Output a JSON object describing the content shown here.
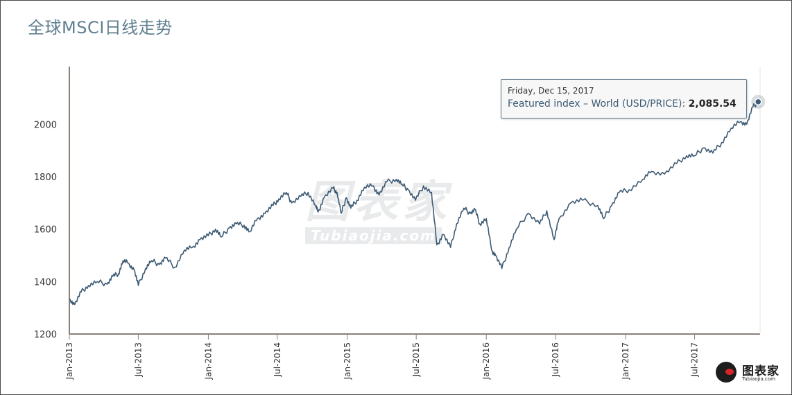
{
  "title": "全球MSCI日线走势",
  "colors": {
    "line": "#3d5a73",
    "axis": "#8a7f77",
    "title": "#5f7f8f",
    "grid_band": "#f5f5f5"
  },
  "chart_data": {
    "type": "line",
    "title": "全球MSCI日线走势",
    "xlabel": "",
    "ylabel": "",
    "ylim": [
      1200,
      2220
    ],
    "xlim": [
      "2013-01-01",
      "2017-12-20"
    ],
    "y_ticks": [
      {
        "value": 1200,
        "label": "1200"
      },
      {
        "value": 1400,
        "label": "1400"
      },
      {
        "value": 1600,
        "label": "1600"
      },
      {
        "value": 1800,
        "label": "1800"
      },
      {
        "value": 2000,
        "label": "2000"
      }
    ],
    "x_ticks": [
      {
        "date": "2013-01-01",
        "label": "Jan-2013"
      },
      {
        "date": "2013-07-01",
        "label": "Jul-2013"
      },
      {
        "date": "2014-01-01",
        "label": "Jan-2014"
      },
      {
        "date": "2014-07-01",
        "label": "Jul-2014"
      },
      {
        "date": "2015-01-01",
        "label": "Jan-2015"
      },
      {
        "date": "2015-07-01",
        "label": "Jul-2015"
      },
      {
        "date": "2016-01-01",
        "label": "Jan-2016"
      },
      {
        "date": "2016-07-01",
        "label": "Jul-2016"
      },
      {
        "date": "2017-01-01",
        "label": "Jan-2017"
      },
      {
        "date": "2017-07-01",
        "label": "Jul-2017"
      }
    ],
    "series": [
      {
        "name": "Featured index – World (USD/PRICE)",
        "points": [
          [
            "2013-01-01",
            1335
          ],
          [
            "2013-01-15",
            1312
          ],
          [
            "2013-02-01",
            1360
          ],
          [
            "2013-02-20",
            1385
          ],
          [
            "2013-03-15",
            1400
          ],
          [
            "2013-04-10",
            1390
          ],
          [
            "2013-04-25",
            1420
          ],
          [
            "2013-05-10",
            1430
          ],
          [
            "2013-05-22",
            1480
          ],
          [
            "2013-06-05",
            1470
          ],
          [
            "2013-06-20",
            1445
          ],
          [
            "2013-07-01",
            1385
          ],
          [
            "2013-07-20",
            1450
          ],
          [
            "2013-08-05",
            1480
          ],
          [
            "2013-08-25",
            1465
          ],
          [
            "2013-09-10",
            1490
          ],
          [
            "2013-10-05",
            1455
          ],
          [
            "2013-10-30",
            1520
          ],
          [
            "2013-11-20",
            1530
          ],
          [
            "2013-12-10",
            1560
          ],
          [
            "2014-01-01",
            1575
          ],
          [
            "2014-01-20",
            1600
          ],
          [
            "2014-02-04",
            1570
          ],
          [
            "2014-02-25",
            1605
          ],
          [
            "2014-03-15",
            1620
          ],
          [
            "2014-04-05",
            1615
          ],
          [
            "2014-04-20",
            1590
          ],
          [
            "2014-05-10",
            1640
          ],
          [
            "2014-05-30",
            1660
          ],
          [
            "2014-06-20",
            1690
          ],
          [
            "2014-07-05",
            1715
          ],
          [
            "2014-07-25",
            1740
          ],
          [
            "2014-08-08",
            1700
          ],
          [
            "2014-09-01",
            1725
          ],
          [
            "2014-09-20",
            1740
          ],
          [
            "2014-10-10",
            1690
          ],
          [
            "2014-10-16",
            1665
          ],
          [
            "2014-11-01",
            1720
          ],
          [
            "2014-11-25",
            1755
          ],
          [
            "2014-12-05",
            1740
          ],
          [
            "2014-12-16",
            1660
          ],
          [
            "2014-12-29",
            1720
          ],
          [
            "2015-01-10",
            1680
          ],
          [
            "2015-01-26",
            1710
          ],
          [
            "2015-02-15",
            1760
          ],
          [
            "2015-03-10",
            1765
          ],
          [
            "2015-03-25",
            1730
          ],
          [
            "2015-04-15",
            1780
          ],
          [
            "2015-05-10",
            1790
          ],
          [
            "2015-05-25",
            1770
          ],
          [
            "2015-06-10",
            1750
          ],
          [
            "2015-06-29",
            1710
          ],
          [
            "2015-07-20",
            1765
          ],
          [
            "2015-08-10",
            1740
          ],
          [
            "2015-08-24",
            1540
          ],
          [
            "2015-09-10",
            1580
          ],
          [
            "2015-09-29",
            1530
          ],
          [
            "2015-10-15",
            1620
          ],
          [
            "2015-11-03",
            1680
          ],
          [
            "2015-11-20",
            1660
          ],
          [
            "2015-12-02",
            1675
          ],
          [
            "2015-12-15",
            1620
          ],
          [
            "2016-01-01",
            1640
          ],
          [
            "2016-01-15",
            1520
          ],
          [
            "2016-01-25",
            1500
          ],
          [
            "2016-02-11",
            1450
          ],
          [
            "2016-03-01",
            1530
          ],
          [
            "2016-03-20",
            1600
          ],
          [
            "2016-04-20",
            1660
          ],
          [
            "2016-05-20",
            1620
          ],
          [
            "2016-06-08",
            1670
          ],
          [
            "2016-06-27",
            1560
          ],
          [
            "2016-07-10",
            1640
          ],
          [
            "2016-08-10",
            1700
          ],
          [
            "2016-09-10",
            1710
          ],
          [
            "2016-10-20",
            1690
          ],
          [
            "2016-11-04",
            1640
          ],
          [
            "2016-11-25",
            1690
          ],
          [
            "2016-12-15",
            1740
          ],
          [
            "2017-01-10",
            1750
          ],
          [
            "2017-02-15",
            1790
          ],
          [
            "2017-03-10",
            1820
          ],
          [
            "2017-04-13",
            1810
          ],
          [
            "2017-05-15",
            1850
          ],
          [
            "2017-06-10",
            1880
          ],
          [
            "2017-07-01",
            1880
          ],
          [
            "2017-07-25",
            1910
          ],
          [
            "2017-08-18",
            1890
          ],
          [
            "2017-09-10",
            1930
          ],
          [
            "2017-10-05",
            1985
          ],
          [
            "2017-10-30",
            2010
          ],
          [
            "2017-11-15",
            2000
          ],
          [
            "2017-12-01",
            2065
          ],
          [
            "2017-12-15",
            2085.54
          ]
        ]
      }
    ],
    "highlight": {
      "date": "2017-12-15",
      "value": 2085.54
    }
  },
  "tooltip": {
    "date": "Friday, Dec 15, 2017",
    "series": "Featured index – World (USD/PRICE): ",
    "value": "2,085.54"
  },
  "watermark": {
    "main": "图表家",
    "sub": "Tubiaojia.com"
  },
  "logo": {
    "text": "图表家",
    "sub": "Tubiaojia.com"
  }
}
